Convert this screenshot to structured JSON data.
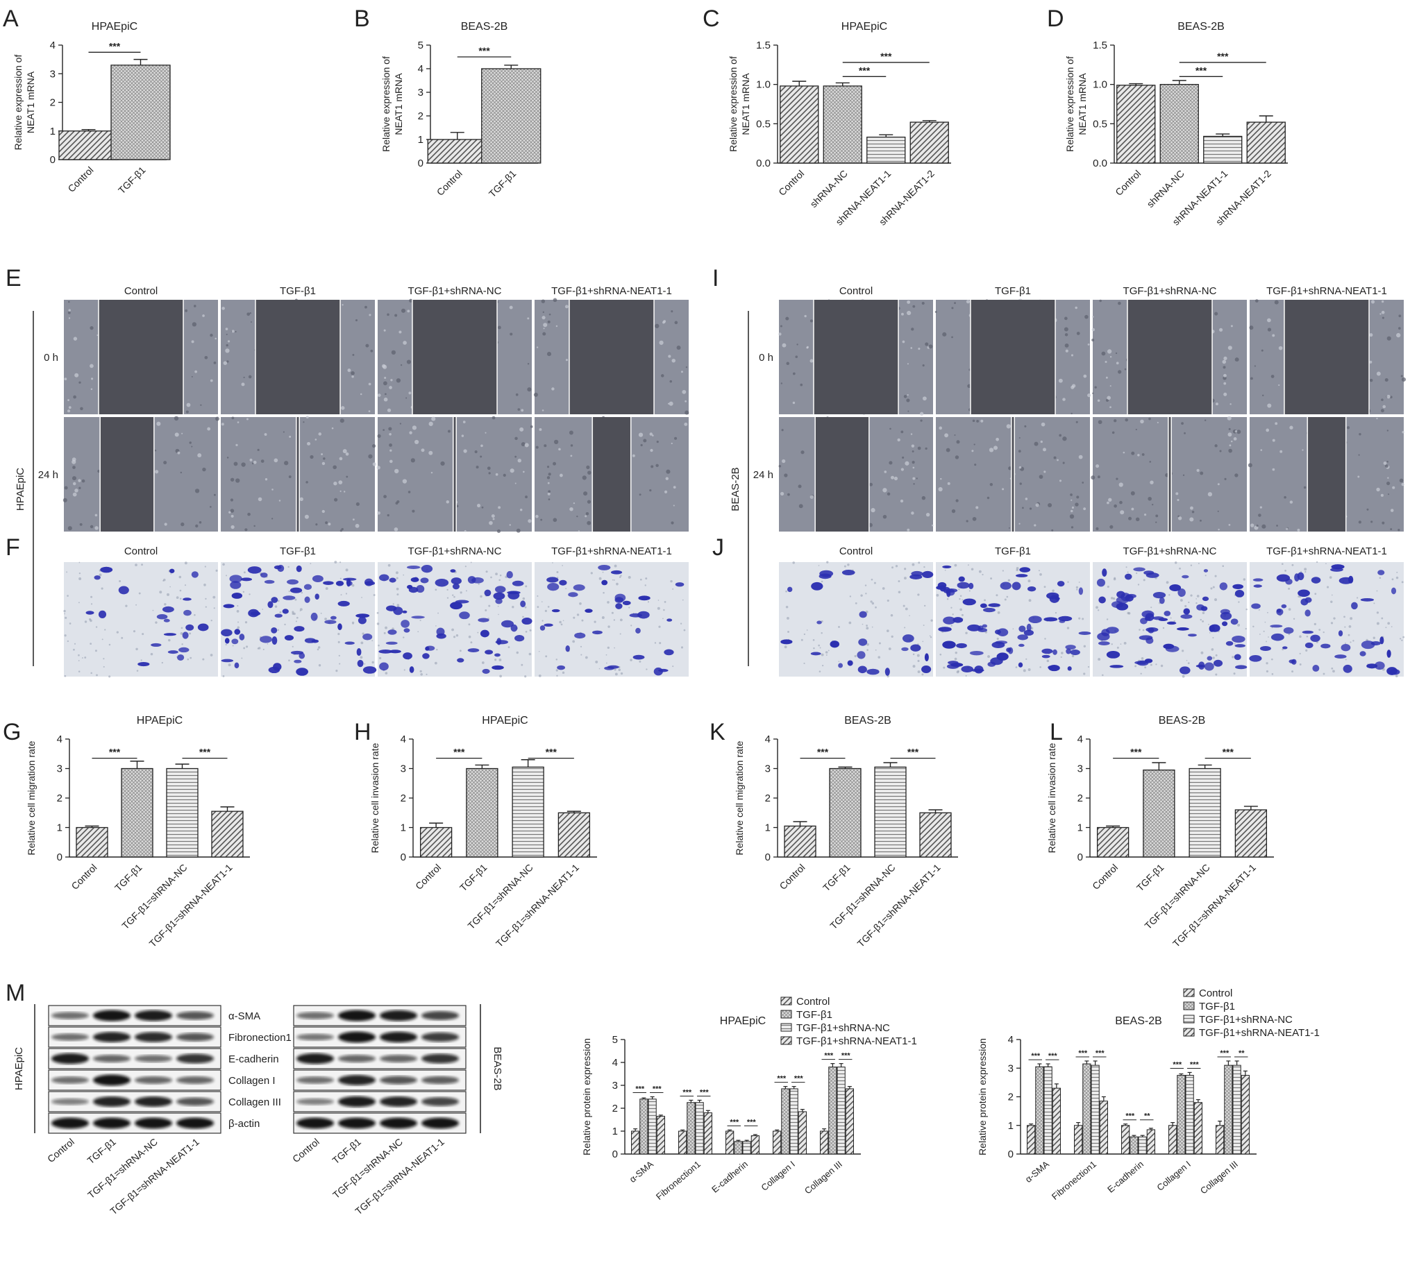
{
  "panel_letters": {
    "A": "A",
    "B": "B",
    "C": "C",
    "D": "D",
    "E": "E",
    "F": "F",
    "G": "G",
    "H": "H",
    "I": "I",
    "J": "J",
    "K": "K",
    "L": "L",
    "M": "M"
  },
  "micro": {
    "conditions": [
      "Control",
      "TGF-β1",
      "TGF-β1+shRNA-NC",
      "TGF-β1+shRNA-NEAT1-1"
    ],
    "time_labels": [
      "0 h",
      "24 h"
    ],
    "left_cell_line": "HPAEpiC",
    "right_cell_line": "BEAS-2B",
    "left_gap_24h": [
      0.35,
      0.02,
      0.02,
      0.25
    ],
    "right_gap_24h": [
      0.35,
      0.02,
      0.02,
      0.25
    ],
    "gap_0h": [
      0.55,
      0.55,
      0.55,
      0.55
    ],
    "left_stain_density": [
      0.3,
      0.9,
      0.85,
      0.45
    ],
    "right_stain_density": [
      0.35,
      1.0,
      1.0,
      0.7
    ],
    "colors": {
      "phase": "#8b8f9c",
      "gap": "#4e4f57",
      "stain_bg": "#dfe3ea",
      "stain": "#2b2fb0"
    }
  },
  "western": {
    "proteins": [
      "α-SMA",
      "Fibronection1",
      "E-cadherin",
      "Collagen I",
      "Collagen III",
      "β-actin"
    ],
    "lanes": [
      "Control",
      "TGF-β1",
      "TGF-β1=shRNA-NC",
      "TGF-β1=shRNA-NEAT1-1"
    ],
    "left_cell_line": "HPAEpiC",
    "right_cell_line": "BEAS-2B",
    "left_intensity": [
      [
        0.45,
        1,
        0.95,
        0.6
      ],
      [
        0.45,
        0.9,
        0.85,
        0.6
      ],
      [
        0.95,
        0.5,
        0.45,
        0.8
      ],
      [
        0.45,
        1,
        0.5,
        0.5
      ],
      [
        0.35,
        0.9,
        0.9,
        0.6
      ],
      [
        1,
        1,
        1,
        1
      ]
    ],
    "right_intensity": [
      [
        0.45,
        1,
        0.95,
        0.7
      ],
      [
        0.4,
        1,
        0.95,
        0.75
      ],
      [
        0.95,
        0.5,
        0.5,
        0.8
      ],
      [
        0.45,
        0.9,
        0.6,
        0.55
      ],
      [
        0.35,
        0.95,
        0.9,
        0.7
      ],
      [
        1,
        1,
        1,
        1
      ]
    ]
  },
  "chart_data": [
    {
      "id": "A",
      "type": "bar",
      "title": "HPAEpiC",
      "ylabel": "Relative expression of\nNEAT1 mRNA",
      "categories": [
        "Control",
        "TGF-β1"
      ],
      "values": [
        1.0,
        3.3
      ],
      "errors": [
        0.05,
        0.2
      ],
      "ylim": [
        0,
        4
      ],
      "yticks": [
        "0",
        "1",
        "2",
        "3",
        "4"
      ],
      "patterns": [
        "diag",
        "cross"
      ],
      "sig": [
        {
          "from": 0,
          "to": 1,
          "label": "***",
          "y": 3.75
        }
      ]
    },
    {
      "id": "B",
      "type": "bar",
      "title": "BEAS-2B",
      "ylabel": "Relative expression of\nNEAT1 mRNA",
      "categories": [
        "Control",
        "TGF-β1"
      ],
      "values": [
        1.0,
        4.0
      ],
      "errors": [
        0.3,
        0.15
      ],
      "ylim": [
        0,
        5
      ],
      "yticks": [
        "0",
        "1",
        "2",
        "3",
        "4",
        "5"
      ],
      "patterns": [
        "diag",
        "cross"
      ],
      "sig": [
        {
          "from": 0,
          "to": 1,
          "label": "***",
          "y": 4.5
        }
      ]
    },
    {
      "id": "C",
      "type": "bar",
      "title": "HPAEpiC",
      "ylabel": "Relative expression of\nNEAT1 mRNA",
      "categories": [
        "Control",
        "shRNA-NC",
        "shRNA-NEAT1-1",
        "shRNA-NEAT1-2"
      ],
      "values": [
        0.98,
        0.98,
        0.33,
        0.52
      ],
      "errors": [
        0.06,
        0.04,
        0.03,
        0.02
      ],
      "ylim": [
        0,
        1.5
      ],
      "yticks": [
        "0.0",
        "0.5",
        "1.0",
        "1.5"
      ],
      "patterns": [
        "diag",
        "cross",
        "horiz",
        "diag"
      ],
      "sig": [
        {
          "from": 1,
          "to": 2,
          "label": "***",
          "y": 1.1
        },
        {
          "from": 1,
          "to": 3,
          "label": "***",
          "y": 1.28
        }
      ]
    },
    {
      "id": "D",
      "type": "bar",
      "title": "BEAS-2B",
      "ylabel": "Relative expression of\nNEAT1 mRNA",
      "categories": [
        "Control",
        "shRNA-NC",
        "shRNA-NEAT1-1",
        "shRNA-NEAT1-2"
      ],
      "values": [
        0.99,
        1.0,
        0.34,
        0.52
      ],
      "errors": [
        0.02,
        0.05,
        0.03,
        0.08
      ],
      "ylim": [
        0,
        1.5
      ],
      "yticks": [
        "0.0",
        "0.5",
        "1.0",
        "1.5"
      ],
      "patterns": [
        "diag",
        "cross",
        "horiz",
        "diag"
      ],
      "sig": [
        {
          "from": 1,
          "to": 2,
          "label": "***",
          "y": 1.1
        },
        {
          "from": 1,
          "to": 3,
          "label": "***",
          "y": 1.28
        }
      ]
    },
    {
      "id": "G",
      "type": "bar",
      "title": "HPAEpiC",
      "ylabel": "Relative cell migration rate",
      "categories": [
        "Control",
        "TGF-β1",
        "TGF-β1=shRNA-NC",
        "TGF-β1=shRNA-NEAT1-1"
      ],
      "values": [
        1.0,
        3.0,
        3.0,
        1.55
      ],
      "errors": [
        0.05,
        0.25,
        0.15,
        0.15
      ],
      "ylim": [
        0,
        4
      ],
      "yticks": [
        "0",
        "1",
        "2",
        "3",
        "4"
      ],
      "patterns": [
        "diag",
        "cross",
        "horiz",
        "diag"
      ],
      "sig": [
        {
          "from": 0,
          "to": 1,
          "label": "***",
          "y": 3.35
        },
        {
          "from": 2,
          "to": 3,
          "label": "***",
          "y": 3.35
        }
      ]
    },
    {
      "id": "H",
      "type": "bar",
      "title": "HPAEpiC",
      "ylabel": "Relative cell invasion rate",
      "categories": [
        "Control",
        "TGF-β1",
        "TGF-β1=shRNA-NC",
        "TGF-β1=shRNA-NEAT1-1"
      ],
      "values": [
        1.0,
        3.0,
        3.05,
        1.5
      ],
      "errors": [
        0.15,
        0.12,
        0.25,
        0.05
      ],
      "ylim": [
        0,
        4
      ],
      "yticks": [
        "0",
        "1",
        "2",
        "3",
        "4"
      ],
      "patterns": [
        "diag",
        "cross",
        "horiz",
        "diag"
      ],
      "sig": [
        {
          "from": 0,
          "to": 1,
          "label": "***",
          "y": 3.35
        },
        {
          "from": 2,
          "to": 3,
          "label": "***",
          "y": 3.35
        }
      ]
    },
    {
      "id": "K",
      "type": "bar",
      "title": "BEAS-2B",
      "ylabel": "Relative cell migration rate",
      "categories": [
        "Control",
        "TGF-β1",
        "TGF-β1=shRNA-NC",
        "TGF-β1=shRNA-NEAT1-1"
      ],
      "values": [
        1.05,
        3.0,
        3.05,
        1.5
      ],
      "errors": [
        0.15,
        0.05,
        0.15,
        0.1
      ],
      "ylim": [
        0,
        4
      ],
      "yticks": [
        "0",
        "1",
        "2",
        "3",
        "4"
      ],
      "patterns": [
        "diag",
        "cross",
        "horiz",
        "diag"
      ],
      "sig": [
        {
          "from": 0,
          "to": 1,
          "label": "***",
          "y": 3.35
        },
        {
          "from": 2,
          "to": 3,
          "label": "***",
          "y": 3.35
        }
      ]
    },
    {
      "id": "L",
      "type": "bar",
      "title": "BEAS-2B",
      "ylabel": "Relative cell invasion rate",
      "categories": [
        "Control",
        "TGF-β1",
        "TGF-β1=shRNA-NC",
        "TGF-β1=shRNA-NEAT1-1"
      ],
      "values": [
        1.0,
        2.95,
        3.0,
        1.6
      ],
      "errors": [
        0.05,
        0.25,
        0.12,
        0.12
      ],
      "ylim": [
        0,
        4
      ],
      "yticks": [
        "0",
        "1",
        "2",
        "3",
        "4"
      ],
      "patterns": [
        "diag",
        "cross",
        "horiz",
        "diag"
      ],
      "sig": [
        {
          "from": 0,
          "to": 1,
          "label": "***",
          "y": 3.35
        },
        {
          "from": 2,
          "to": 3,
          "label": "***",
          "y": 3.35
        }
      ]
    },
    {
      "id": "M1",
      "type": "bar",
      "title": "HPAEpiC",
      "ylabel": "Relative protein expression",
      "categories": [
        "α-SMA",
        "Fibronection1",
        "E-cadherin",
        "Collagen I",
        "Collagen III"
      ],
      "ylim": [
        0,
        5
      ],
      "yticks": [
        "0",
        "1",
        "2",
        "3",
        "4",
        "5"
      ],
      "series": [
        {
          "name": "Control",
          "values": [
            1.0,
            1.0,
            1.0,
            1.0,
            1.0
          ],
          "errors": [
            0.1,
            0.05,
            0.05,
            0.05,
            0.1
          ]
        },
        {
          "name": "TGF-β1",
          "values": [
            2.4,
            2.25,
            0.55,
            2.85,
            3.8
          ],
          "errors": [
            0.05,
            0.1,
            0.05,
            0.1,
            0.15
          ]
        },
        {
          "name": "TGF-β1+shRNA-NC",
          "values": [
            2.4,
            2.25,
            0.55,
            2.85,
            3.8
          ],
          "errors": [
            0.1,
            0.1,
            0.05,
            0.1,
            0.15
          ]
        },
        {
          "name": "TGF-β1+shRNA-NEAT1-1",
          "values": [
            1.65,
            1.8,
            0.8,
            1.85,
            2.85
          ],
          "errors": [
            0.05,
            0.1,
            0.05,
            0.1,
            0.1
          ]
        }
      ],
      "sig": [
        {
          "cat": 0,
          "labels": [
            "***",
            "***"
          ]
        },
        {
          "cat": 1,
          "labels": [
            "***",
            "***"
          ]
        },
        {
          "cat": 2,
          "labels": [
            "***",
            "***"
          ]
        },
        {
          "cat": 3,
          "labels": [
            "***",
            "***"
          ]
        },
        {
          "cat": 4,
          "labels": [
            "***",
            "***"
          ]
        }
      ]
    },
    {
      "id": "M2",
      "type": "bar",
      "title": "BEAS-2B",
      "ylabel": "Relative protein expression",
      "categories": [
        "α-SMA",
        "Fibronection1",
        "E-cadherin",
        "Collagen I",
        "Collagen III"
      ],
      "ylim": [
        0,
        4
      ],
      "yticks": [
        "0",
        "1",
        "2",
        "3",
        "4"
      ],
      "series": [
        {
          "name": "Control",
          "values": [
            1.0,
            1.0,
            1.0,
            1.0,
            1.0
          ],
          "errors": [
            0.05,
            0.1,
            0.05,
            0.1,
            0.15
          ]
        },
        {
          "name": "TGF-β1",
          "values": [
            3.05,
            3.15,
            0.6,
            2.75,
            3.1
          ],
          "errors": [
            0.1,
            0.1,
            0.05,
            0.05,
            0.15
          ]
        },
        {
          "name": "TGF-β1+shRNA-NC",
          "values": [
            3.05,
            3.1,
            0.6,
            2.75,
            3.1
          ],
          "errors": [
            0.1,
            0.15,
            0.05,
            0.1,
            0.15
          ]
        },
        {
          "name": "TGF-β1+shRNA-NEAT1-1",
          "values": [
            2.3,
            1.85,
            0.85,
            1.8,
            2.75
          ],
          "errors": [
            0.15,
            0.15,
            0.05,
            0.1,
            0.15
          ]
        }
      ],
      "sig": [
        {
          "cat": 0,
          "labels": [
            "***",
            "***"
          ]
        },
        {
          "cat": 1,
          "labels": [
            "***",
            "***"
          ]
        },
        {
          "cat": 2,
          "labels": [
            "***",
            "**"
          ]
        },
        {
          "cat": 3,
          "labels": [
            "***",
            "***"
          ]
        },
        {
          "cat": 4,
          "labels": [
            "***",
            "**"
          ]
        }
      ]
    }
  ]
}
